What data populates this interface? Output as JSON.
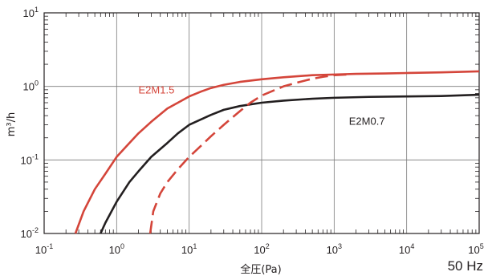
{
  "chart_data": {
    "type": "line",
    "title": "",
    "xlabel": "全圧(Pa)",
    "ylabel": "m³/h",
    "xscale": "log",
    "yscale": "log",
    "xlim": [
      0.1,
      100000
    ],
    "ylim": [
      0.01,
      10
    ],
    "grid": true,
    "x_ticks": [
      {
        "base": "10",
        "exp": "-1",
        "value": 0.1
      },
      {
        "base": "10",
        "exp": "0",
        "value": 1
      },
      {
        "base": "10",
        "exp": "1",
        "value": 10
      },
      {
        "base": "10",
        "exp": "2",
        "value": 100
      },
      {
        "base": "10",
        "exp": "3",
        "value": 1000
      },
      {
        "base": "10",
        "exp": "4",
        "value": 10000
      },
      {
        "base": "10",
        "exp": "5",
        "value": 100000
      }
    ],
    "y_ticks": [
      {
        "base": "10",
        "exp": "-2",
        "value": 0.01
      },
      {
        "base": "10",
        "exp": "-1",
        "value": 0.1
      },
      {
        "base": "10",
        "exp": "0",
        "value": 1
      },
      {
        "base": "10",
        "exp": "1",
        "value": 10
      }
    ],
    "series": [
      {
        "name": "E2M1.5",
        "color": "#d4453a",
        "dash": false,
        "x": [
          0.27,
          0.35,
          0.5,
          0.7,
          1,
          1.5,
          2,
          3,
          5,
          7,
          10,
          15,
          20,
          30,
          50,
          100,
          200,
          500,
          1000,
          2000,
          5000,
          10000,
          30000,
          100000
        ],
        "y": [
          0.01,
          0.02,
          0.04,
          0.065,
          0.11,
          0.17,
          0.23,
          0.33,
          0.5,
          0.6,
          0.73,
          0.86,
          0.95,
          1.05,
          1.15,
          1.25,
          1.33,
          1.42,
          1.45,
          1.48,
          1.5,
          1.52,
          1.55,
          1.6
        ]
      },
      {
        "name": "E2M0.7",
        "color": "#231f20",
        "dash": false,
        "x": [
          0.6,
          0.7,
          1,
          1.5,
          2,
          3,
          5,
          7,
          10,
          15,
          20,
          30,
          50,
          100,
          200,
          500,
          1000,
          3000,
          10000,
          30000,
          100000
        ],
        "y": [
          0.01,
          0.014,
          0.027,
          0.05,
          0.07,
          0.11,
          0.17,
          0.23,
          0.3,
          0.36,
          0.41,
          0.48,
          0.54,
          0.6,
          0.64,
          0.68,
          0.7,
          0.72,
          0.73,
          0.74,
          0.77
        ]
      },
      {
        "name": "",
        "color": "#d4453a",
        "dash": true,
        "x": [
          2.9,
          3.2,
          4,
          5,
          7,
          10,
          15,
          20,
          30,
          50,
          70,
          100,
          200,
          300,
          500,
          700,
          1000,
          1500
        ],
        "y": [
          0.01,
          0.02,
          0.035,
          0.05,
          0.075,
          0.11,
          0.16,
          0.21,
          0.3,
          0.46,
          0.6,
          0.75,
          1.0,
          1.12,
          1.27,
          1.35,
          1.42,
          1.45
        ]
      }
    ],
    "annotations": [
      {
        "text": "E2M1.5",
        "x": 2.0,
        "y": 0.8,
        "color": "#d4453a"
      },
      {
        "text": "E2M0.7",
        "x": 1600,
        "y": 0.3,
        "color": "#231f20"
      }
    ],
    "footer": "50 Hz"
  }
}
